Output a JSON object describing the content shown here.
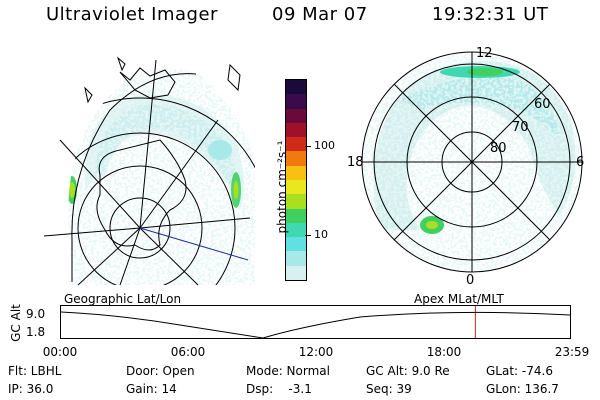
{
  "header": {
    "instrument": "Ultraviolet Imager",
    "date": "09 Mar 07",
    "time": "19:32:31 UT"
  },
  "left_panel": {
    "caption": "Geographic Lat/Lon"
  },
  "right_panel": {
    "caption": "Apex MLat/MLT",
    "mlt_labels": [
      "12",
      "18",
      "6",
      "0"
    ],
    "mlat_labels": [
      "60",
      "70",
      "80"
    ]
  },
  "colorbar": {
    "unit_label": "photon cm⁻²s⁻¹",
    "ticks": [
      "100",
      "10"
    ],
    "colors_top_to_bottom": [
      "#1a0a3a",
      "#3a0a4a",
      "#6a0a3a",
      "#a0102a",
      "#d02a1a",
      "#f07a10",
      "#f8c010",
      "#e8e820",
      "#a8e020",
      "#40d060",
      "#40d8b0",
      "#60e0e0",
      "#a8e8e8",
      "#d8f0f0"
    ]
  },
  "altitude_plot": {
    "ylabel": "GC Alt",
    "ytick_top": "9.0",
    "ytick_bottom": "1.8",
    "xticks": [
      "00:00",
      "06:00",
      "12:00",
      "18:00",
      "23:59"
    ],
    "marker_time_fraction": 0.814
  },
  "info": {
    "rows": [
      [
        "Flt: LBHL",
        "Door: Open",
        "Mode: Normal",
        "GC Alt: 9.0 Re",
        "GLat: -74.6"
      ],
      [
        "IP: 36.0",
        "Gain: 14",
        "Dsp:    -3.1",
        "Seq: 39",
        "GLon: 136.7"
      ]
    ]
  }
}
